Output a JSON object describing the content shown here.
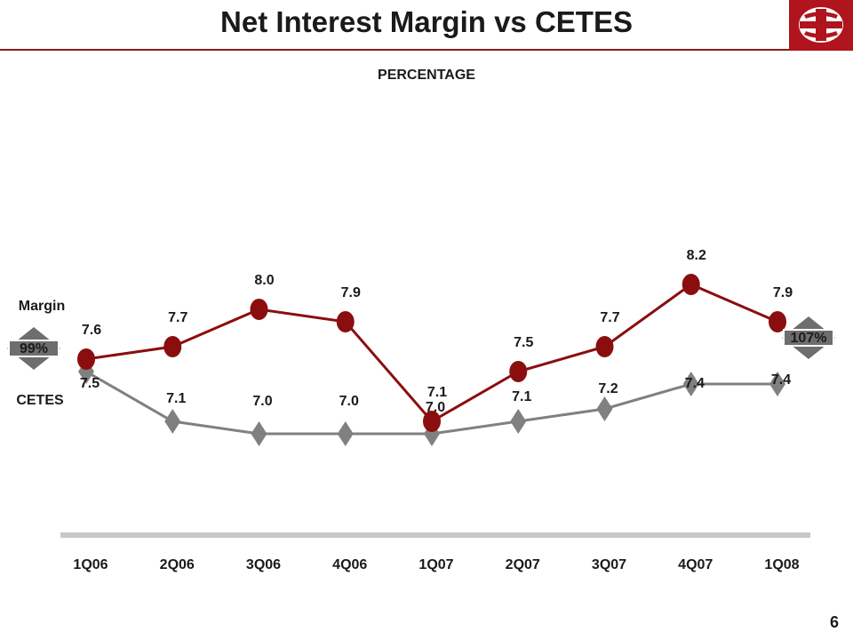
{
  "slide": {
    "title": "Net Interest Margin vs CETES",
    "subtitle": "PERCENTAGE",
    "page_number": "6"
  },
  "annotations": {
    "left_ratio": "99%",
    "right_ratio": "107%"
  },
  "colors": {
    "margin": "#8b0e0e",
    "cetes": "#808080",
    "brand": "#b0141c"
  },
  "chart_data": {
    "type": "line",
    "categories": [
      "1Q06",
      "2Q06",
      "3Q06",
      "4Q06",
      "1Q07",
      "2Q07",
      "3Q07",
      "4Q07",
      "1Q08"
    ],
    "series": [
      {
        "name": "Margin",
        "values": [
          7.6,
          7.7,
          8.0,
          7.9,
          7.1,
          7.5,
          7.7,
          8.2,
          7.9
        ],
        "marker": "circle"
      },
      {
        "name": "CETES",
        "values": [
          7.5,
          7.1,
          7.0,
          7.0,
          7.0,
          7.1,
          7.2,
          7.4,
          7.4
        ],
        "marker": "diamond"
      }
    ],
    "title": "Net Interest Margin vs CETES",
    "subtitle": "PERCENTAGE",
    "grid": false,
    "legend": "left"
  }
}
